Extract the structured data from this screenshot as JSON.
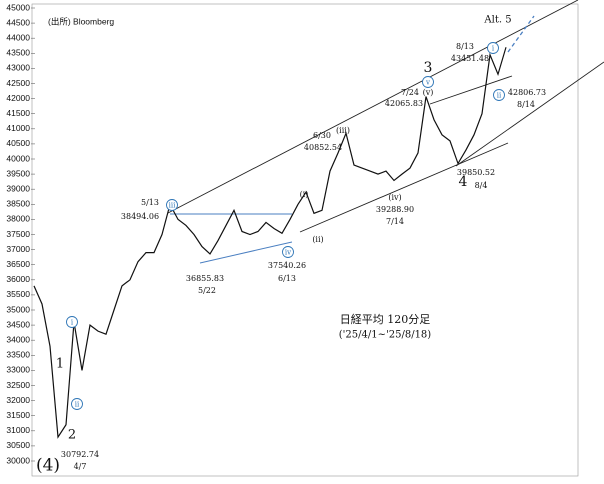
{
  "chart_data": {
    "type": "line",
    "source": "(出所) Bloomberg",
    "title": "日経平均 120分足",
    "subtitle": "('25/4/1~'25/8/18)",
    "series": [
      {
        "color": "#111111",
        "values": [
          35800,
          35200,
          33800,
          30792.74,
          31200,
          34600,
          33000,
          34500,
          34300,
          34200,
          35000,
          35800,
          36000,
          36600,
          36900,
          36900,
          37500,
          38494.06,
          38000,
          37800,
          37500,
          37100,
          36855.83,
          37300,
          37800,
          38300,
          37600,
          37500,
          37600,
          37900,
          37700,
          37540.26,
          38000,
          38500,
          38900,
          38200,
          38300,
          39600,
          40200,
          40852.54,
          39800,
          39700,
          39600,
          39500,
          39600,
          39288.9,
          39500,
          39700,
          40200,
          42065.83,
          41300,
          40800,
          40600,
          39850.52,
          40300,
          40800,
          41500,
          43451.48,
          42806.73,
          43700
        ]
      }
    ],
    "ylim": [
      30000,
      45000
    ],
    "yticks": [
      30000,
      30500,
      31000,
      31500,
      32000,
      32500,
      33000,
      33500,
      34000,
      34500,
      35000,
      35500,
      36000,
      36500,
      37000,
      37500,
      38000,
      38500,
      39000,
      39500,
      40000,
      40500,
      41000,
      41500,
      42000,
      42500,
      43000,
      43500,
      44000,
      44500,
      45000
    ],
    "price_annotations": [
      {
        "date": "4/7",
        "price": 30792.74
      },
      {
        "date": "5/13",
        "price": 38494.06
      },
      {
        "date": "5/22",
        "price": 36855.83
      },
      {
        "date": "6/13",
        "price": 37540.26
      },
      {
        "date": "6/30",
        "price": 40852.54
      },
      {
        "date": "7/14",
        "price": {
          "value": 39288.9,
          "label": "39288.90"
        }
      },
      {
        "date": "7/24",
        "price": 42065.83
      },
      {
        "date": "8/4",
        "price": 39850.52
      },
      {
        "date": "8/13",
        "price": 43451.48
      },
      {
        "date": "8/14",
        "price": 42806.73
      }
    ],
    "wave_labels": [
      "(4)",
      "1",
      "2",
      "3",
      "4",
      "Alt. 5"
    ],
    "minor_wave_labels": [
      "(i)",
      "(ii)",
      "(iii)",
      "(iv)",
      "(v)"
    ],
    "circled_wave_labels": [
      "i",
      "ii",
      "iii",
      "iv",
      "v",
      "i",
      "ii"
    ]
  }
}
